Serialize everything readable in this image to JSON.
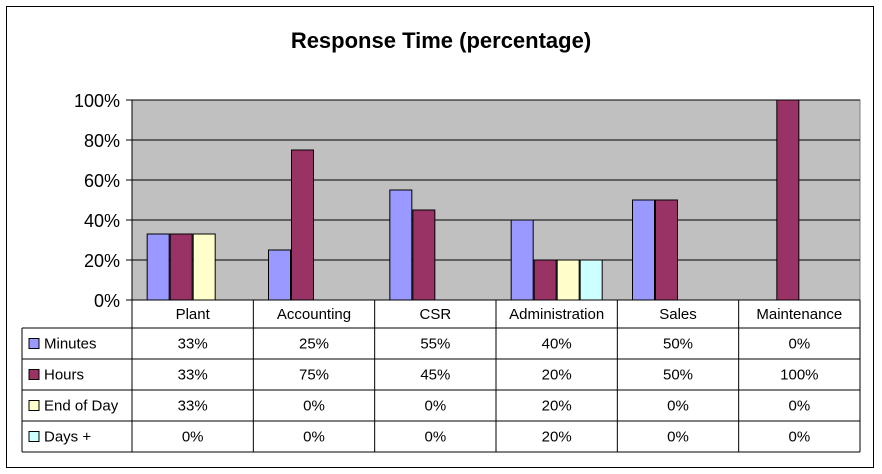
{
  "chart_data": {
    "type": "bar",
    "title": "Response Time (percentage)",
    "categories": [
      "Plant",
      "Accounting",
      "CSR",
      "Administration",
      "Sales",
      "Maintenance"
    ],
    "series": [
      {
        "name": "Minutes",
        "values": [
          33,
          25,
          55,
          40,
          50,
          0
        ],
        "labels": [
          "33%",
          "25%",
          "55%",
          "40%",
          "50%",
          "0%"
        ],
        "color": "#9999ff"
      },
      {
        "name": "Hours",
        "values": [
          33,
          75,
          45,
          20,
          50,
          100
        ],
        "labels": [
          "33%",
          "75%",
          "45%",
          "20%",
          "50%",
          "100%"
        ],
        "color": "#993366"
      },
      {
        "name": "End of Day",
        "values": [
          33,
          0,
          0,
          20,
          0,
          0
        ],
        "labels": [
          "33%",
          "0%",
          "0%",
          "20%",
          "0%",
          "0%"
        ],
        "color": "#ffffcc"
      },
      {
        "name": "Days +",
        "values": [
          0,
          0,
          0,
          20,
          0,
          0
        ],
        "labels": [
          "0%",
          "0%",
          "0%",
          "20%",
          "0%",
          "0%"
        ],
        "color": "#ccffff"
      }
    ],
    "ylim": [
      0,
      100
    ],
    "yticks": [
      "0%",
      "20%",
      "40%",
      "60%",
      "80%",
      "100%"
    ],
    "grid": true,
    "plot_background": "#c0c0c0",
    "legend": "data-table"
  }
}
